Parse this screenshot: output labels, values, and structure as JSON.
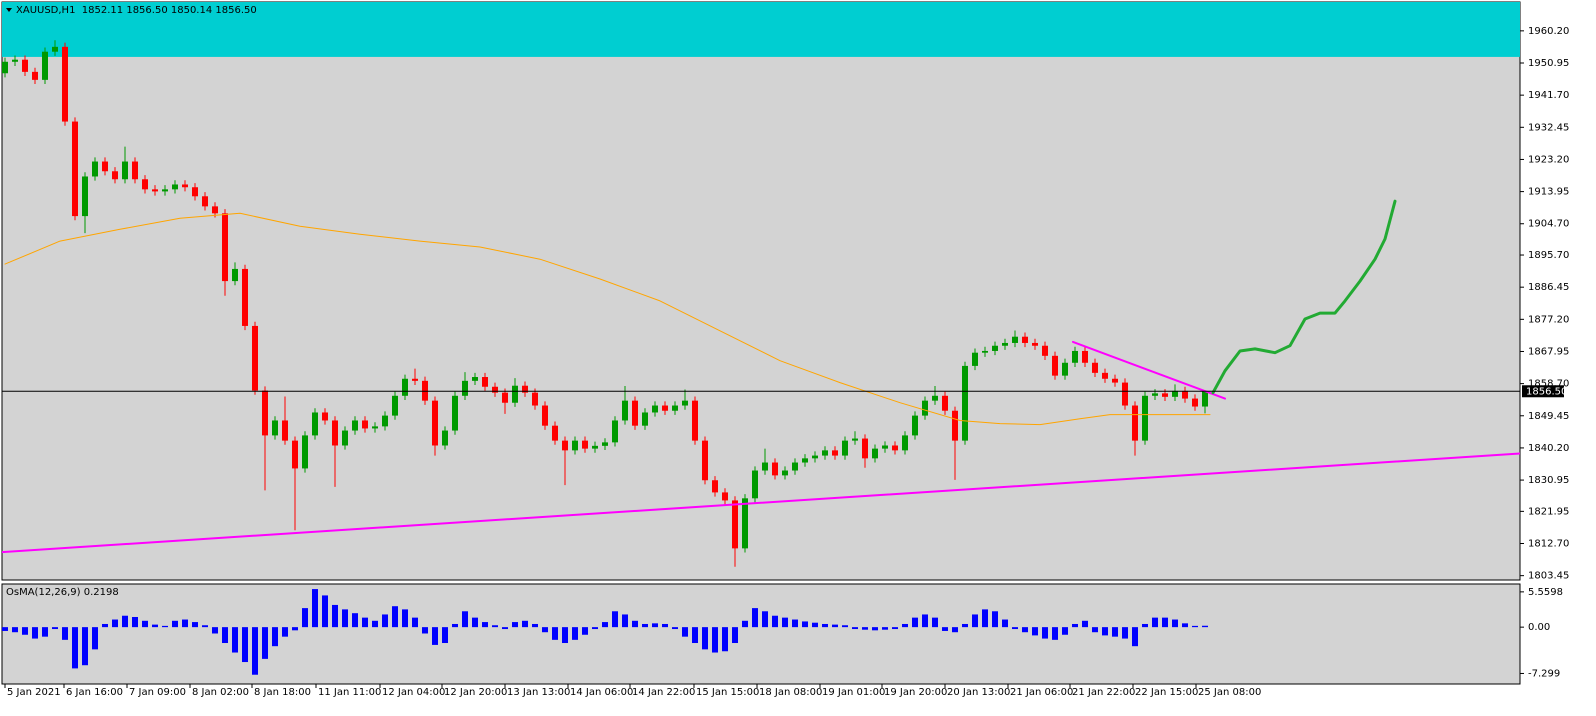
{
  "chart_data": [
    {
      "type": "candlestick",
      "header": "XAUUSD,H1  1852.11 1856.50 1850.14 1856.50",
      "up_color": "#009900",
      "down_color": "#ff0000",
      "xlim": [
        -0.5,
        151.5
      ],
      "xticks": [
        {
          "value": 0,
          "label": "5 Jan 2021"
        },
        {
          "value": 5.9,
          "label": "6 Jan 16:00"
        },
        {
          "value": 12.2,
          "label": "7 Jan 09:00"
        },
        {
          "value": 18.5,
          "label": "8 Jan 02:00"
        },
        {
          "value": 24.7,
          "label": "8 Jan 18:00"
        },
        {
          "value": 31.1,
          "label": "11 Jan 11:00"
        },
        {
          "value": 37.5,
          "label": "12 Jan 04:00"
        },
        {
          "value": 43.7,
          "label": "12 Jan 20:00"
        },
        {
          "value": 50,
          "label": "13 Jan 13:00"
        },
        {
          "value": 56.3,
          "label": "14 Jan 06:00"
        },
        {
          "value": 62.5,
          "label": "14 Jan 22:00"
        },
        {
          "value": 68.9,
          "label": "15 Jan 15:00"
        },
        {
          "value": 75.2,
          "label": "18 Jan 08:00"
        },
        {
          "value": 81.5,
          "label": "19 Jan 01:00"
        },
        {
          "value": 87.7,
          "label": "19 Jan 20:00"
        },
        {
          "value": 94,
          "label": "20 Jan 13:00"
        },
        {
          "value": 100.3,
          "label": "21 Jan 06:00"
        },
        {
          "value": 106.5,
          "label": "21 Jan 22:00"
        },
        {
          "value": 112.8,
          "label": "22 Jan 15:00"
        },
        {
          "value": 119.1,
          "label": "25 Jan 08:00"
        }
      ],
      "ylim": [
        1802.2,
        1968.5
      ],
      "yticks": [
        {
          "value": 1960.2,
          "label": "1960.20"
        },
        1950.95,
        {
          "value": 1941.7,
          "label": "1941.70"
        },
        1932.45,
        {
          "value": 1923.2,
          "label": "1923.20"
        },
        1913.95,
        {
          "value": 1904.7,
          "label": "1904.70"
        },
        {
          "value": 1895.7,
          "label": "1895.70"
        },
        1886.45,
        {
          "value": 1877.2,
          "label": "1877.20"
        },
        1867.95,
        {
          "value": 1858.7,
          "label": "1858.70"
        },
        1849.45,
        {
          "value": 1840.2,
          "label": "1840.20"
        },
        1830.95,
        1821.95,
        {
          "value": 1812.7,
          "label": "1812.70"
        },
        1803.45
      ],
      "zone": {
        "color": "#00ced1",
        "from": 1952.7
      },
      "last_price": {
        "value": 1856.5,
        "label": "1856.50"
      },
      "open": [
        1948.0,
        1951.3,
        1951.9,
        1948.4,
        1946.1,
        1954.2,
        1955.6,
        1934.1,
        1906.9,
        1918.3,
        1922.6,
        1919.8,
        1917.5,
        1922.6,
        1917.5,
        1914.6,
        1914.0,
        1914.6,
        1916.0,
        1915.2,
        1912.6,
        1909.7,
        1907.7,
        1888.2,
        1891.7,
        1875.3,
        1856.7,
        1843.8,
        1848.1,
        1842.3,
        1834.3,
        1843.8,
        1850.4,
        1848.1,
        1840.9,
        1845.2,
        1848.1,
        1845.8,
        1846.4,
        1849.5,
        1855.2,
        1860.1,
        1859.5,
        1853.8,
        1840.9,
        1845.2,
        1855.2,
        1859.5,
        1860.6,
        1857.8,
        1856.1,
        1853.2,
        1858.1,
        1856.1,
        1852.4,
        1846.6,
        1842.3,
        1839.5,
        1842.3,
        1840.0,
        1840.8,
        1841.8,
        1848.1,
        1853.8,
        1846.6,
        1850.4,
        1852.4,
        1850.9,
        1852.4,
        1853.8,
        1842.3,
        1830.9,
        1827.4,
        1825.1,
        1811.3,
        1825.7,
        1833.7,
        1836.0,
        1832.3,
        1833.7,
        1836.0,
        1837.2,
        1838.0,
        1839.5,
        1838.0,
        1842.3,
        1842.9,
        1837.2,
        1840.0,
        1840.9,
        1839.5,
        1843.8,
        1849.5,
        1853.8,
        1855.2,
        1850.9,
        1842.3,
        1863.8,
        1867.6,
        1868.1,
        1869.6,
        1870.4,
        1872.2,
        1870.4,
        1869.6,
        1866.7,
        1861.0,
        1864.7,
        1868.1,
        1864.7,
        1861.8,
        1860.1,
        1859.0,
        1852.4,
        1842.3,
        1855.2,
        1855.9,
        1854.9,
        1856.6,
        1854.4,
        1852.11
      ],
      "high": [
        1952.5,
        1953.1,
        1953.1,
        1949.6,
        1955.4,
        1957.5,
        1956.8,
        1935.3,
        1919.5,
        1923.8,
        1923.8,
        1921.0,
        1926.9,
        1923.8,
        1918.7,
        1915.8,
        1915.8,
        1917.2,
        1917.2,
        1916.4,
        1913.8,
        1910.9,
        1908.9,
        1893.6,
        1892.9,
        1876.5,
        1857.9,
        1849.3,
        1855.0,
        1843.5,
        1845.0,
        1851.6,
        1851.6,
        1849.3,
        1846.4,
        1849.3,
        1849.3,
        1847.6,
        1850.7,
        1856.4,
        1861.3,
        1863.0,
        1860.7,
        1855.0,
        1846.4,
        1856.4,
        1862.0,
        1861.8,
        1861.8,
        1859.0,
        1857.3,
        1860.3,
        1859.3,
        1857.3,
        1853.6,
        1847.8,
        1843.5,
        1843.5,
        1843.5,
        1842.0,
        1843.0,
        1849.3,
        1858.0,
        1855.0,
        1851.6,
        1853.6,
        1853.6,
        1853.6,
        1857.0,
        1855.0,
        1843.5,
        1832.1,
        1828.6,
        1826.3,
        1826.9,
        1834.9,
        1840.0,
        1837.2,
        1834.9,
        1837.2,
        1838.4,
        1839.2,
        1840.7,
        1840.7,
        1843.5,
        1845.0,
        1844.1,
        1841.2,
        1842.1,
        1842.1,
        1845.0,
        1850.7,
        1855.0,
        1858.0,
        1856.4,
        1852.1,
        1865.0,
        1868.8,
        1869.3,
        1870.8,
        1871.6,
        1874.0,
        1873.4,
        1871.6,
        1870.8,
        1867.9,
        1865.9,
        1869.3,
        1869.3,
        1865.9,
        1863.0,
        1861.3,
        1860.2,
        1853.6,
        1856.4,
        1857.1,
        1857.1,
        1858.5,
        1857.8,
        1855.6,
        1856.5
      ],
      "low": [
        1946.8,
        1950.1,
        1947.2,
        1944.9,
        1944.9,
        1953.0,
        1932.9,
        1905.7,
        1902.0,
        1917.1,
        1918.6,
        1916.3,
        1916.3,
        1916.3,
        1913.4,
        1912.8,
        1912.8,
        1913.4,
        1914.0,
        1911.4,
        1908.5,
        1906.5,
        1884.0,
        1887.0,
        1874.1,
        1855.5,
        1828.0,
        1842.6,
        1841.1,
        1816.5,
        1833.1,
        1842.6,
        1846.9,
        1829.0,
        1839.7,
        1844.0,
        1844.6,
        1844.6,
        1845.2,
        1848.3,
        1854.0,
        1858.3,
        1852.6,
        1838.0,
        1839.7,
        1844.0,
        1854.0,
        1858.3,
        1856.6,
        1854.9,
        1850.0,
        1852.0,
        1854.9,
        1851.2,
        1845.4,
        1841.1,
        1829.5,
        1838.3,
        1838.8,
        1838.8,
        1839.6,
        1840.6,
        1846.9,
        1845.4,
        1845.4,
        1849.2,
        1849.7,
        1849.7,
        1851.2,
        1841.1,
        1829.7,
        1826.2,
        1823.9,
        1806.0,
        1810.1,
        1824.5,
        1832.5,
        1831.1,
        1831.1,
        1832.5,
        1834.8,
        1836.0,
        1836.8,
        1836.8,
        1836.8,
        1841.1,
        1834.5,
        1836.0,
        1838.8,
        1838.3,
        1838.3,
        1842.6,
        1848.3,
        1852.6,
        1849.7,
        1831.0,
        1841.1,
        1862.6,
        1866.4,
        1866.9,
        1868.4,
        1869.2,
        1869.2,
        1868.4,
        1865.5,
        1859.8,
        1859.8,
        1863.5,
        1863.5,
        1860.6,
        1858.9,
        1857.8,
        1851.2,
        1838.0,
        1841.1,
        1854.0,
        1853.7,
        1853.7,
        1853.2,
        1850.9,
        1850.14
      ],
      "close": [
        1951.3,
        1951.9,
        1948.4,
        1946.1,
        1954.2,
        1955.6,
        1934.1,
        1906.9,
        1918.3,
        1922.6,
        1919.8,
        1917.5,
        1922.6,
        1917.5,
        1914.6,
        1914.0,
        1914.6,
        1916.0,
        1915.2,
        1912.6,
        1909.7,
        1907.7,
        1888.2,
        1891.7,
        1875.3,
        1856.7,
        1843.8,
        1848.1,
        1842.3,
        1834.3,
        1843.8,
        1850.4,
        1848.1,
        1840.9,
        1845.2,
        1848.1,
        1845.8,
        1846.4,
        1849.5,
        1855.2,
        1860.1,
        1859.5,
        1853.8,
        1840.9,
        1845.2,
        1855.2,
        1859.5,
        1860.6,
        1857.8,
        1856.1,
        1853.2,
        1858.1,
        1856.1,
        1852.4,
        1846.6,
        1842.3,
        1839.5,
        1842.3,
        1840.0,
        1840.8,
        1841.8,
        1848.1,
        1853.8,
        1846.6,
        1850.4,
        1852.4,
        1850.9,
        1852.4,
        1853.8,
        1842.3,
        1830.9,
        1827.4,
        1825.1,
        1811.3,
        1825.7,
        1833.7,
        1836.0,
        1832.3,
        1833.7,
        1836.0,
        1837.2,
        1838.0,
        1839.5,
        1838.0,
        1842.3,
        1842.9,
        1837.2,
        1840.0,
        1840.9,
        1839.5,
        1843.8,
        1849.5,
        1853.8,
        1855.2,
        1850.9,
        1842.3,
        1863.8,
        1867.6,
        1868.1,
        1869.6,
        1870.4,
        1872.2,
        1870.4,
        1869.6,
        1866.7,
        1861.0,
        1864.7,
        1868.1,
        1864.7,
        1861.8,
        1860.1,
        1859.0,
        1852.4,
        1842.3,
        1855.2,
        1855.9,
        1854.9,
        1856.6,
        1854.4,
        1852.11,
        1856.5
      ],
      "lines": [
        {
          "color": "#ffa500",
          "width": 1,
          "x": [
            0,
            5.5,
            11.5,
            17.5,
            23.5,
            29.5,
            35.5,
            41.5,
            47.5,
            53.5,
            59.5,
            65.5,
            71.5,
            77.5,
            83.5,
            89.5,
            95.5,
            99.5,
            103.5,
            107.5,
            110.5,
            113.5,
            117.5,
            120.5
          ],
          "values": [
            1893.1,
            1899.7,
            1903.1,
            1906.3,
            1907.7,
            1904.0,
            1901.7,
            1899.7,
            1898.0,
            1894.5,
            1888.8,
            1882.5,
            1873.9,
            1865.3,
            1859.0,
            1853.2,
            1848.1,
            1847.2,
            1846.9,
            1848.6,
            1849.8,
            1849.8,
            1849.8,
            1849.8
          ]
        },
        {
          "color": "#ff00ff",
          "width": 2,
          "x": [
            -0.5,
            151.5
          ],
          "values": [
            1810.2,
            1838.6
          ]
        },
        {
          "color": "#ff00ff",
          "width": 2,
          "x": [
            106.8,
            122
          ],
          "values": [
            1870.7,
            1854.4
          ]
        },
        {
          "color": "#22aa33",
          "width": 3,
          "x": [
            120.8,
            122,
            123.5,
            125,
            127,
            128.5,
            130,
            131.5,
            133,
            134,
            135.5,
            137,
            138,
            139
          ],
          "values": [
            1856.1,
            1862.4,
            1868.1,
            1868.7,
            1867.6,
            1869.6,
            1877.3,
            1879.0,
            1879.0,
            1882.5,
            1888.2,
            1894.5,
            1900.3,
            1911.2
          ]
        }
      ]
    },
    {
      "type": "histogram",
      "title": "OsMA(12,26,9) 0.2198",
      "color": "#0000ff",
      "ylim": [
        -8.96,
        6.8
      ],
      "yticks": [
        5.5598,
        {
          "value": 0,
          "label": "0.00"
        },
        -7.299
      ],
      "values": [
        -0.6,
        -0.8,
        -1.2,
        -1.8,
        -1.5,
        -0.3,
        -2.0,
        -6.5,
        -6.0,
        -3.5,
        0.5,
        1.2,
        1.8,
        1.6,
        1.0,
        0.4,
        0.2,
        1.0,
        1.2,
        0.8,
        0.3,
        -1.0,
        -2.5,
        -4.0,
        -5.5,
        -7.5,
        -5.0,
        -3.0,
        -1.5,
        -0.5,
        3.0,
        6.0,
        5.0,
        3.5,
        2.8,
        2.2,
        1.5,
        1.0,
        2.0,
        3.3,
        2.8,
        1.5,
        -1.0,
        -2.8,
        -2.5,
        0.5,
        2.5,
        1.5,
        0.8,
        0.3,
        -0.3,
        0.8,
        1.0,
        0.5,
        -0.8,
        -2.0,
        -2.5,
        -2.0,
        -1.2,
        -0.3,
        0.8,
        2.5,
        2.0,
        1.0,
        0.5,
        0.6,
        0.5,
        -0.3,
        -1.5,
        -2.5,
        -3.5,
        -4.0,
        -3.8,
        -2.5,
        1.0,
        3.0,
        2.5,
        1.8,
        1.5,
        1.2,
        0.9,
        0.7,
        0.5,
        0.4,
        0.3,
        -0.3,
        -0.4,
        -0.5,
        -0.4,
        -0.3,
        0.5,
        1.5,
        2.0,
        1.5,
        -0.6,
        -0.8,
        0.5,
        2.0,
        2.8,
        2.5,
        1.2,
        -0.3,
        -0.8,
        -1.3,
        -1.8,
        -2.0,
        -1.2,
        0.5,
        1.0,
        -0.8,
        -1.3,
        -1.5,
        -1.8,
        -3.0,
        0.5,
        1.5,
        1.5,
        1.2,
        0.6,
        0.2,
        0.2198
      ]
    }
  ]
}
